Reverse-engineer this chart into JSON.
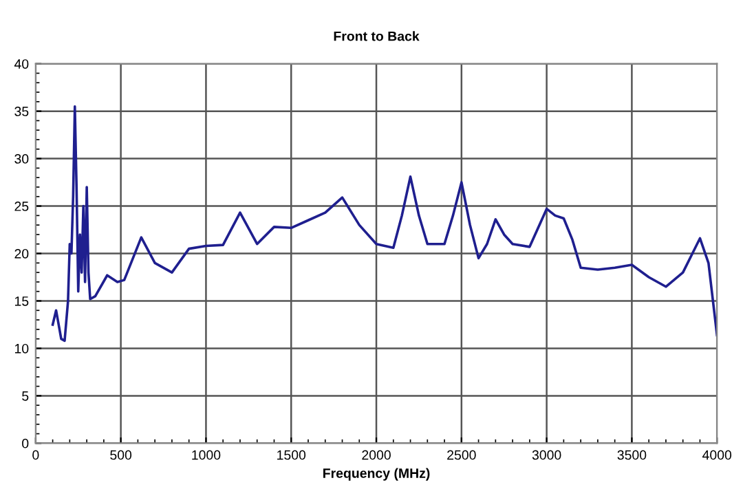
{
  "chart_data": {
    "type": "line",
    "title": "Front to Back",
    "xlabel": "Frequency (MHz)",
    "x": [
      100,
      120,
      150,
      170,
      190,
      200,
      210,
      220,
      230,
      240,
      250,
      260,
      270,
      280,
      290,
      300,
      310,
      320,
      350,
      420,
      480,
      520,
      620,
      700,
      800,
      900,
      1000,
      1100,
      1200,
      1300,
      1400,
      1500,
      1600,
      1700,
      1800,
      1900,
      2000,
      2100,
      2150,
      2200,
      2250,
      2300,
      2400,
      2450,
      2500,
      2550,
      2600,
      2650,
      2700,
      2750,
      2800,
      2900,
      3000,
      3050,
      3100,
      3150,
      3200,
      3300,
      3400,
      3500,
      3600,
      3700,
      3800,
      3900,
      3950,
      4000
    ],
    "series": [
      {
        "color": "#1f1f8f",
        "values": [
          12.5,
          14,
          11,
          10.8,
          15,
          21,
          20,
          26,
          35.5,
          27,
          16,
          22,
          18,
          25,
          17,
          27,
          18,
          15.2,
          15.5,
          17.7,
          17,
          17.2,
          21.7,
          19,
          18,
          20.5,
          20.8,
          20.9,
          24.3,
          21,
          22.8,
          22.7,
          23.5,
          24.3,
          25.9,
          23,
          21,
          20.6,
          24,
          28.1,
          24,
          21,
          21,
          24,
          27.5,
          23,
          19.5,
          21,
          23.6,
          22,
          21,
          20.7,
          24.7,
          24,
          23.7,
          21.5,
          18.5,
          18.3,
          18.5,
          18.8,
          17.5,
          16.5,
          18,
          21.6,
          19,
          11.4
        ]
      }
    ],
    "xlim": [
      0,
      4000
    ],
    "xticks": [
      0,
      500,
      1000,
      1500,
      2000,
      2500,
      3000,
      3500,
      4000
    ],
    "ylim": [
      0,
      40
    ],
    "yticks": [
      0,
      5,
      10,
      15,
      20,
      25,
      30,
      35,
      40
    ],
    "grid": true,
    "legend": false,
    "marker": "none",
    "line_style": "solid"
  }
}
